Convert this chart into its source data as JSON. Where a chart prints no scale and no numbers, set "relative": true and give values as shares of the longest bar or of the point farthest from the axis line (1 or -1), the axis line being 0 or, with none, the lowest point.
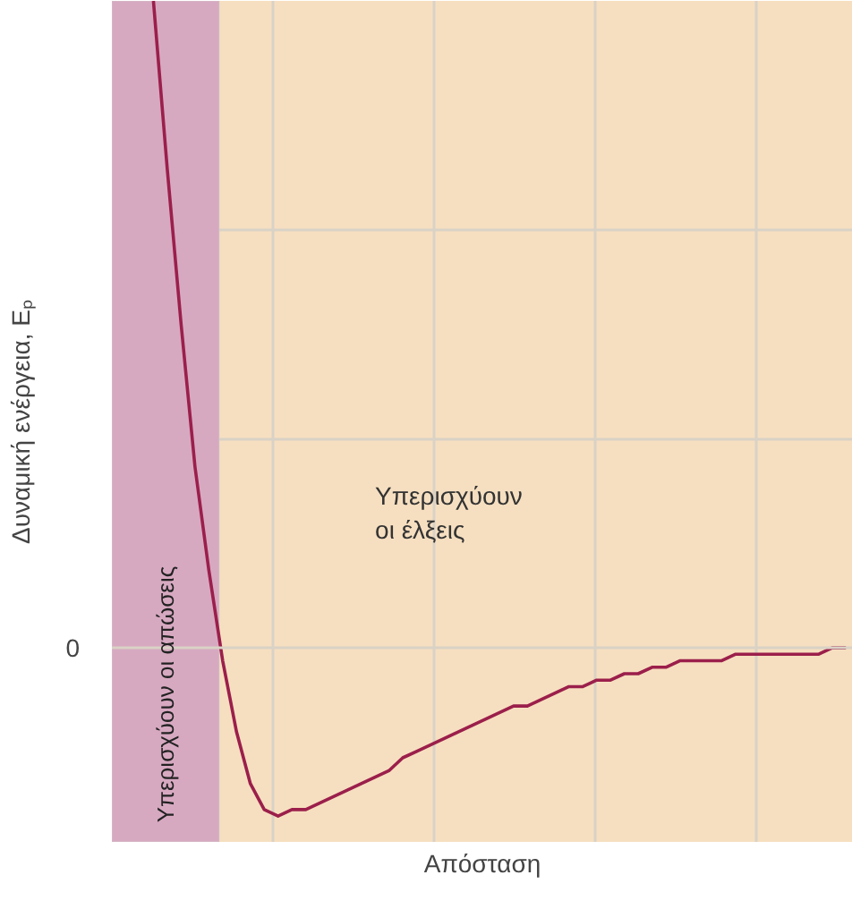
{
  "chart_data": {
    "type": "line",
    "relative": true,
    "xlabel": "Απόσταση",
    "ylabel": "Δυναμική ενέργεια, Eₚ",
    "categories": [
      null,
      null,
      null,
      null,
      null,
      null,
      null,
      null,
      null,
      null,
      null,
      null,
      null,
      null,
      null,
      null,
      null,
      null,
      null,
      null,
      null,
      null,
      null,
      null,
      null,
      null,
      null,
      null,
      null,
      null,
      null,
      null,
      null,
      null,
      null,
      null,
      null,
      null,
      null,
      null,
      null,
      null,
      null,
      null,
      null,
      null,
      null,
      null,
      null,
      null,
      null
    ],
    "series": [
      {
        "color": "#9b1f4b",
        "values": [
          1.0,
          0.74,
          0.5,
          0.28,
          0.12,
          -0.02,
          -0.13,
          -0.21,
          -0.25,
          -0.26,
          -0.25,
          -0.25,
          -0.24,
          -0.23,
          -0.22,
          -0.21,
          -0.2,
          -0.19,
          -0.17,
          -0.16,
          -0.15,
          -0.14,
          -0.13,
          -0.12,
          -0.11,
          -0.1,
          -0.09,
          -0.09,
          -0.08,
          -0.07,
          -0.06,
          -0.06,
          -0.05,
          -0.05,
          -0.04,
          -0.04,
          -0.03,
          -0.03,
          -0.02,
          -0.02,
          -0.02,
          -0.02,
          -0.01,
          -0.01,
          -0.01,
          -0.01,
          -0.01,
          -0.01,
          -0.01,
          0.0,
          0.0
        ]
      }
    ],
    "ref_lines": [
      {
        "axis": "y",
        "value": 0,
        "label": "0",
        "color": "#d9d2c6"
      }
    ],
    "annotations": [
      "Υπερισχύουν\nοι έλξεις",
      "Υπερισχύουν οι απώσεις"
    ],
    "grid": true,
    "marker": "none",
    "line_style": "solid"
  }
}
